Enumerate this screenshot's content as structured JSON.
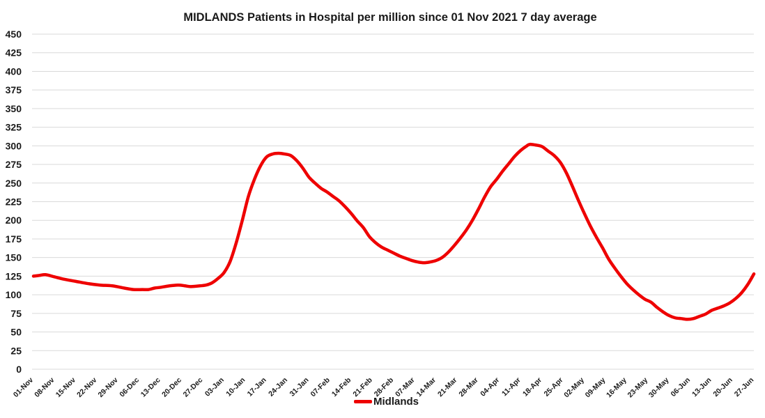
{
  "chart_data": {
    "type": "line",
    "title": "MIDLANDS Patients in Hospital per million since 01 Nov 2021 7 day average",
    "xlabel": "",
    "ylabel": "",
    "ylim": [
      0,
      450
    ],
    "yticks": [
      0,
      25,
      50,
      75,
      100,
      125,
      150,
      175,
      200,
      225,
      250,
      275,
      300,
      325,
      350,
      375,
      400,
      425,
      450
    ],
    "grid": true,
    "legend_position": "bottom",
    "categories": [
      "01-Nov",
      "08-Nov",
      "15-Nov",
      "22-Nov",
      "29-Nov",
      "06-Dec",
      "13-Dec",
      "20-Dec",
      "27-Dec",
      "03-Jan",
      "10-Jan",
      "17-Jan",
      "24-Jan",
      "31-Jan",
      "07-Feb",
      "14-Feb",
      "21-Feb",
      "28-Feb",
      "07-Mar",
      "14-Mar",
      "21-Mar",
      "28-Mar",
      "04-Apr",
      "11-Apr",
      "18-Apr",
      "25-Apr",
      "02-May",
      "09-May",
      "16-May",
      "23-May",
      "30-May",
      "06-Jun",
      "13-Jun",
      "20-Jun",
      "27-Jun"
    ],
    "series": [
      {
        "name": "Midlands",
        "color": "#ee0000",
        "points": [
          [
            0,
            125
          ],
          [
            2,
            126
          ],
          [
            4,
            127
          ],
          [
            7,
            124
          ],
          [
            10,
            121
          ],
          [
            14,
            118
          ],
          [
            18,
            115
          ],
          [
            22,
            113
          ],
          [
            26,
            112
          ],
          [
            30,
            109
          ],
          [
            33,
            107
          ],
          [
            36,
            107
          ],
          [
            38,
            107
          ],
          [
            40,
            109
          ],
          [
            42,
            110
          ],
          [
            45,
            112
          ],
          [
            48,
            113
          ],
          [
            50,
            112
          ],
          [
            52,
            111
          ],
          [
            55,
            112
          ],
          [
            57,
            113
          ],
          [
            59,
            116
          ],
          [
            61,
            122
          ],
          [
            63,
            130
          ],
          [
            65,
            145
          ],
          [
            67,
            170
          ],
          [
            69,
            200
          ],
          [
            71,
            232
          ],
          [
            73,
            255
          ],
          [
            75,
            273
          ],
          [
            77,
            285
          ],
          [
            79,
            289
          ],
          [
            81,
            290
          ],
          [
            83,
            289
          ],
          [
            85,
            287
          ],
          [
            87,
            280
          ],
          [
            89,
            270
          ],
          [
            91,
            258
          ],
          [
            93,
            250
          ],
          [
            95,
            243
          ],
          [
            97,
            238
          ],
          [
            99,
            232
          ],
          [
            101,
            226
          ],
          [
            103,
            218
          ],
          [
            105,
            209
          ],
          [
            107,
            199
          ],
          [
            109,
            190
          ],
          [
            111,
            178
          ],
          [
            113,
            170
          ],
          [
            115,
            164
          ],
          [
            117,
            160
          ],
          [
            119,
            156
          ],
          [
            121,
            152
          ],
          [
            123,
            149
          ],
          [
            125,
            146
          ],
          [
            127,
            144
          ],
          [
            129,
            143
          ],
          [
            131,
            144
          ],
          [
            133,
            146
          ],
          [
            135,
            150
          ],
          [
            137,
            157
          ],
          [
            139,
            166
          ],
          [
            141,
            176
          ],
          [
            143,
            187
          ],
          [
            145,
            200
          ],
          [
            147,
            215
          ],
          [
            149,
            231
          ],
          [
            151,
            245
          ],
          [
            153,
            255
          ],
          [
            155,
            266
          ],
          [
            157,
            276
          ],
          [
            159,
            286
          ],
          [
            161,
            294
          ],
          [
            163,
            300
          ],
          [
            164,
            302
          ],
          [
            166,
            301
          ],
          [
            168,
            299
          ],
          [
            170,
            293
          ],
          [
            172,
            287
          ],
          [
            174,
            278
          ],
          [
            176,
            264
          ],
          [
            178,
            246
          ],
          [
            180,
            227
          ],
          [
            182,
            209
          ],
          [
            184,
            192
          ],
          [
            186,
            177
          ],
          [
            188,
            163
          ],
          [
            190,
            148
          ],
          [
            192,
            136
          ],
          [
            194,
            125
          ],
          [
            196,
            115
          ],
          [
            198,
            107
          ],
          [
            200,
            100
          ],
          [
            202,
            94
          ],
          [
            204,
            90
          ],
          [
            206,
            83
          ],
          [
            208,
            77
          ],
          [
            210,
            72
          ],
          [
            212,
            69
          ],
          [
            214,
            68
          ],
          [
            216,
            67
          ],
          [
            218,
            68
          ],
          [
            220,
            71
          ],
          [
            222,
            74
          ],
          [
            224,
            79
          ],
          [
            226,
            82
          ],
          [
            228,
            85
          ],
          [
            230,
            89
          ],
          [
            232,
            95
          ],
          [
            234,
            103
          ],
          [
            236,
            114
          ],
          [
            238,
            128
          ]
        ]
      }
    ]
  }
}
